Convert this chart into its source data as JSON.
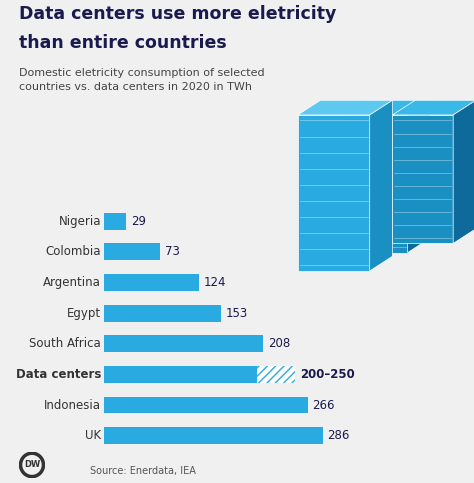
{
  "title_line1": "Data centers use more eletricity",
  "title_line2": "than entire countries",
  "subtitle": "Domestic eletricity consumption of selected\ncountries vs. data centers in 2020 in TWh",
  "source": "Source: Enerdata, IEA",
  "categories": [
    "Nigeria",
    "Colombia",
    "Argentina",
    "Egypt",
    "South Africa",
    "Data centers",
    "Indonesia",
    "UK"
  ],
  "values": [
    29,
    73,
    124,
    153,
    208,
    250,
    266,
    286
  ],
  "value_labels": [
    "29",
    "73",
    "124",
    "153",
    "208",
    "200–250",
    "266",
    "286"
  ],
  "bar_color": "#29ABE2",
  "hatch_color": "#29ABE2",
  "background_color": "#f0f0f0",
  "title_color": "#1a1a4e",
  "subtitle_color": "#444444",
  "label_color": "#333333",
  "value_color": "#1a1a4e",
  "bold_index": 5,
  "max_value": 310
}
